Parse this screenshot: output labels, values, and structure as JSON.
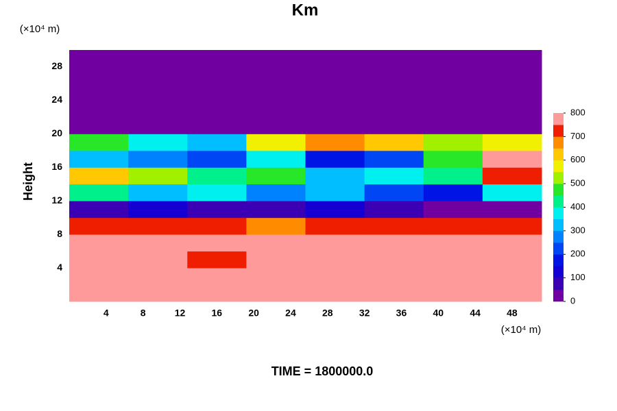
{
  "chart_data": {
    "type": "heatmap",
    "title": "Km",
    "xlabel": "(×10⁴ m)",
    "ylabel": "Height",
    "yunit": "(×10⁴ m)",
    "annotation": "TIME = 1800000.0",
    "xlim": [
      0,
      51.2
    ],
    "xticks": [
      4,
      8,
      12,
      16,
      20,
      24,
      28,
      32,
      36,
      40,
      44,
      48
    ],
    "ylim": [
      0,
      30
    ],
    "yticks": [
      4,
      8,
      12,
      16,
      20,
      24,
      28
    ],
    "clim": [
      0,
      800
    ],
    "cticks": [
      0,
      100,
      200,
      300,
      400,
      500,
      600,
      700,
      800
    ],
    "colors": [
      "#7000a0",
      "#3c00b4",
      "#1400d2",
      "#0014e6",
      "#0046f5",
      "#0082ff",
      "#00beff",
      "#00f0f0",
      "#00f08c",
      "#28e628",
      "#a0f000",
      "#f0f000",
      "#ffc800",
      "#ff8c00",
      "#f01e00",
      "#ff9a9a"
    ],
    "z": [
      [
        800,
        800,
        800,
        800,
        800,
        800,
        800,
        800
      ],
      [
        800,
        800,
        750,
        800,
        800,
        800,
        800,
        800
      ],
      [
        800,
        800,
        720,
        760,
        800,
        800,
        780,
        800
      ],
      [
        800,
        800,
        800,
        800,
        800,
        790,
        800,
        800
      ],
      [
        700,
        720,
        700,
        690,
        710,
        700,
        720,
        700
      ],
      [
        50,
        100,
        80,
        60,
        120,
        90,
        40,
        30
      ],
      [
        400,
        300,
        350,
        250,
        300,
        200,
        150,
        350
      ],
      [
        600,
        500,
        400,
        450,
        300,
        350,
        400,
        700
      ],
      [
        300,
        250,
        200,
        350,
        150,
        200,
        450,
        750
      ],
      [
        450,
        350,
        300,
        550,
        650,
        600,
        500,
        550
      ],
      [
        0,
        0,
        0,
        0,
        0,
        0,
        0,
        0
      ],
      [
        0,
        0,
        0,
        0,
        0,
        0,
        0,
        0
      ],
      [
        0,
        0,
        0,
        0,
        0,
        0,
        0,
        0
      ],
      [
        0,
        0,
        0,
        0,
        0,
        0,
        0,
        0
      ],
      [
        0,
        0,
        0,
        0,
        0,
        0,
        0,
        0
      ]
    ]
  }
}
